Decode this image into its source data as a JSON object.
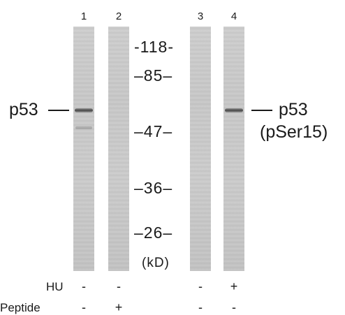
{
  "lanes": [
    {
      "number": "1",
      "hu": "-",
      "peptide": "-"
    },
    {
      "number": "2",
      "hu": "-",
      "peptide": "+"
    },
    {
      "number": "3",
      "hu": "-",
      "peptide": "-"
    },
    {
      "number": "4",
      "hu": "+",
      "peptide": "-"
    }
  ],
  "markers": [
    {
      "label": "-118-"
    },
    {
      "label": "–85–"
    },
    {
      "label": "–47–"
    },
    {
      "label": "–36–"
    },
    {
      "label": "–26–"
    }
  ],
  "unit_label": "(kD)",
  "left_label": "p53",
  "right_label_line1": "p53",
  "right_label_line2": "(pSer15)",
  "conditions": {
    "hu_label": "HU",
    "peptide_label": "Peptide"
  }
}
